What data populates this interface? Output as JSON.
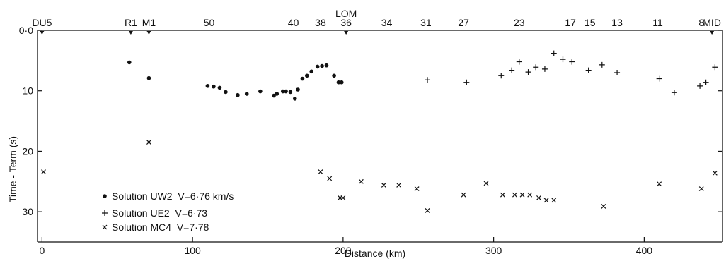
{
  "chart_data": {
    "type": "scatter",
    "title": "",
    "xlabel": "Distance (km)",
    "ylabel": "Time - Term (s)",
    "xlim": [
      -3,
      452
    ],
    "ylim": [
      0,
      35
    ],
    "y_inverted": true,
    "grid": false,
    "legend_position": "bottom-left",
    "x_ticks": [
      0,
      100,
      200,
      300,
      400
    ],
    "x_tick_labels": [
      "0",
      "100",
      "200",
      "300",
      "400"
    ],
    "y_ticks": [
      0,
      10,
      20,
      30
    ],
    "y_tick_labels": [
      "0·0",
      "10",
      "20",
      "30"
    ],
    "top_stations": [
      {
        "label": "DU5",
        "x": 0,
        "marker": true
      },
      {
        "label": "R1",
        "x": 59,
        "marker": true
      },
      {
        "label": "M1",
        "x": 71,
        "marker": true
      },
      {
        "label": "50",
        "x": 111,
        "marker": false
      },
      {
        "label": "40",
        "x": 167,
        "marker": false
      },
      {
        "label": "38",
        "x": 185,
        "marker": false
      },
      {
        "label": "36",
        "x": 202,
        "marker": true
      },
      {
        "label": "LOM",
        "x": 202,
        "marker": false
      },
      {
        "label": "34",
        "x": 229,
        "marker": false
      },
      {
        "label": "31",
        "x": 255,
        "marker": false
      },
      {
        "label": "27",
        "x": 280,
        "marker": false
      },
      {
        "label": "23",
        "x": 317,
        "marker": false
      },
      {
        "label": "17",
        "x": 351,
        "marker": false
      },
      {
        "label": "15",
        "x": 364,
        "marker": false
      },
      {
        "label": "13",
        "x": 382,
        "marker": false
      },
      {
        "label": "11",
        "x": 409,
        "marker": false
      },
      {
        "label": "8",
        "x": 438,
        "marker": false
      },
      {
        "label": "MID",
        "x": 445,
        "marker": true
      }
    ],
    "series": [
      {
        "name": "Solution UW2  V=6·76 km/s",
        "marker": "dot",
        "points": [
          [
            58,
            5.3
          ],
          [
            71,
            7.9
          ],
          [
            110,
            9.2
          ],
          [
            114,
            9.3
          ],
          [
            118,
            9.5
          ],
          [
            122,
            10.2
          ],
          [
            130,
            10.7
          ],
          [
            136,
            10.5
          ],
          [
            145,
            10.1
          ],
          [
            154,
            10.8
          ],
          [
            156,
            10.5
          ],
          [
            160,
            10.1
          ],
          [
            162,
            10.1
          ],
          [
            165,
            10.2
          ],
          [
            168,
            11.3
          ],
          [
            170,
            9.8
          ],
          [
            173,
            8.0
          ],
          [
            176,
            7.5
          ],
          [
            179,
            6.8
          ],
          [
            183,
            6.0
          ],
          [
            186,
            5.9
          ],
          [
            189,
            5.8
          ],
          [
            194,
            7.5
          ],
          [
            197,
            8.6
          ],
          [
            199,
            8.6
          ]
        ]
      },
      {
        "name": "Solution UE2  V=6·73",
        "marker": "plus",
        "points": [
          [
            256,
            8.2
          ],
          [
            282,
            8.6
          ],
          [
            305,
            7.5
          ],
          [
            312,
            6.6
          ],
          [
            317,
            5.2
          ],
          [
            323,
            6.9
          ],
          [
            328,
            6.1
          ],
          [
            334,
            6.4
          ],
          [
            340,
            3.8
          ],
          [
            346,
            4.8
          ],
          [
            352,
            5.2
          ],
          [
            363,
            6.6
          ],
          [
            372,
            5.7
          ],
          [
            382,
            7.0
          ],
          [
            410,
            8.0
          ],
          [
            420,
            10.3
          ],
          [
            437,
            9.2
          ],
          [
            441,
            8.6
          ],
          [
            447,
            6.1
          ]
        ]
      },
      {
        "name": "Solution MC4  V=7·78",
        "marker": "cross",
        "points": [
          [
            1,
            23.4
          ],
          [
            71,
            18.5
          ],
          [
            185,
            23.4
          ],
          [
            191,
            24.5
          ],
          [
            198,
            27.7
          ],
          [
            200,
            27.7
          ],
          [
            212,
            25.0
          ],
          [
            227,
            25.6
          ],
          [
            237,
            25.6
          ],
          [
            249,
            26.2
          ],
          [
            256,
            29.8
          ],
          [
            280,
            27.2
          ],
          [
            295,
            25.3
          ],
          [
            306,
            27.2
          ],
          [
            314,
            27.2
          ],
          [
            319,
            27.2
          ],
          [
            324,
            27.2
          ],
          [
            330,
            27.7
          ],
          [
            335,
            28.1
          ],
          [
            340,
            28.1
          ],
          [
            373,
            29.1
          ],
          [
            410,
            25.4
          ],
          [
            438,
            26.2
          ],
          [
            447,
            23.6
          ]
        ]
      }
    ]
  }
}
